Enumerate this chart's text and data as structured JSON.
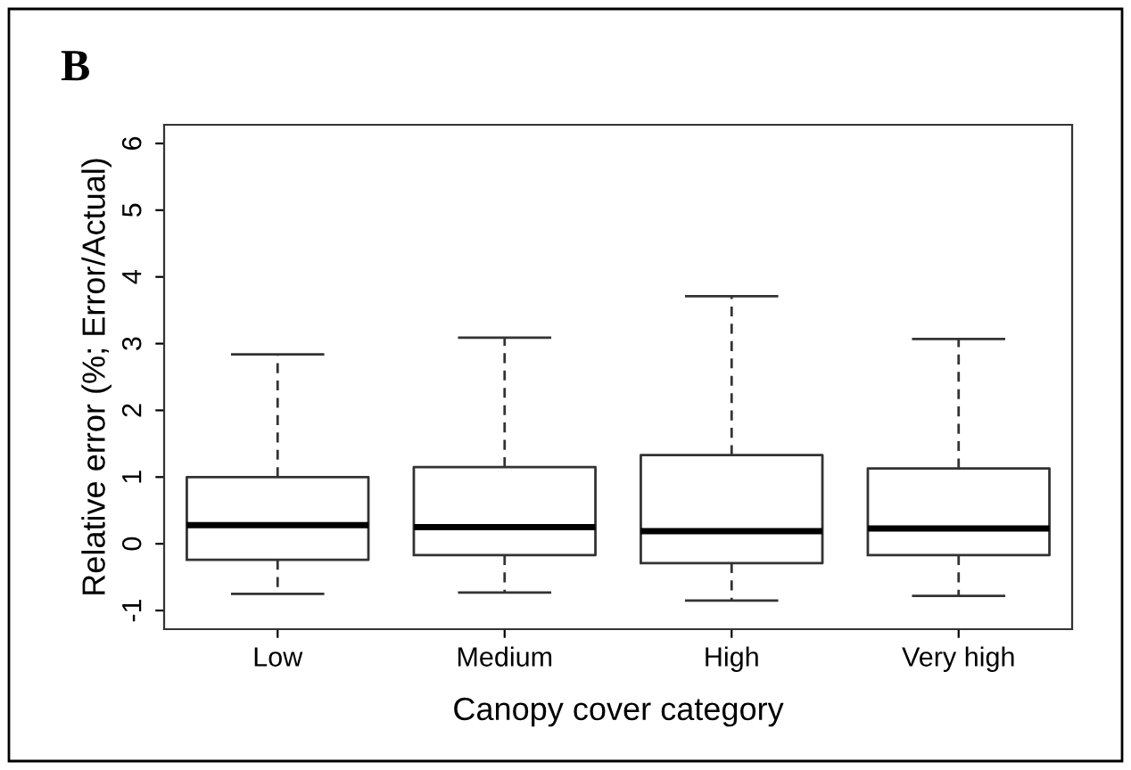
{
  "chart_data": {
    "type": "box",
    "title": "B",
    "xlabel": "Canopy cover category",
    "ylabel": "Relative error (%; Error/Actual)",
    "categories": [
      "Low",
      "Medium",
      "High",
      "Very high"
    ],
    "boxes": [
      {
        "low": -0.75,
        "q1": -0.24,
        "median": 0.28,
        "q3": 1.0,
        "high": 2.84
      },
      {
        "low": -0.73,
        "q1": -0.17,
        "median": 0.25,
        "q3": 1.15,
        "high": 3.09
      },
      {
        "low": -0.85,
        "q1": -0.29,
        "median": 0.19,
        "q3": 1.33,
        "high": 3.71
      },
      {
        "low": -0.78,
        "q1": -0.17,
        "median": 0.23,
        "q3": 1.13,
        "high": 3.07
      }
    ],
    "ylim": [
      -1.28,
      6.28
    ],
    "yticks": [
      -1,
      0,
      1,
      2,
      3,
      4,
      5,
      6
    ],
    "grid": false,
    "legend": false
  }
}
